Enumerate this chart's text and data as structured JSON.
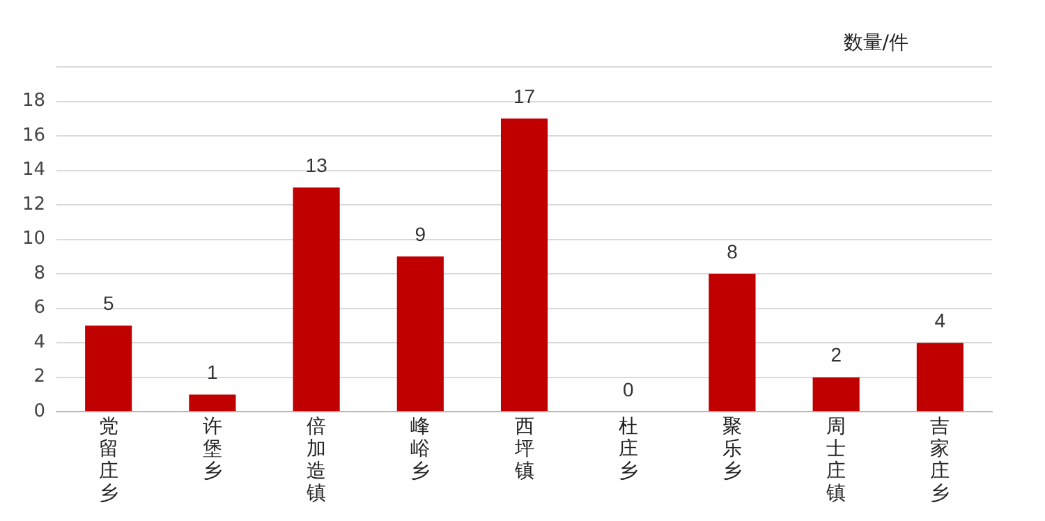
{
  "chart_data": {
    "type": "bar",
    "ylabel": "数量/件",
    "categories": [
      "党留庄乡",
      "许堡乡",
      "倍加造镇",
      "峰峪乡",
      "西坪镇",
      "杜庄乡",
      "聚乐乡",
      "周士庄镇",
      "吉家庄乡"
    ],
    "values": [
      5,
      1,
      13,
      9,
      17,
      0,
      8,
      2,
      4
    ],
    "color": "#c00000",
    "ylim": [
      0,
      20
    ],
    "yticks": [
      0,
      2,
      4,
      6,
      8,
      10,
      12,
      14,
      16,
      18,
      {
        "value": 20,
        "label": null
      }
    ],
    "grid": "y",
    "data_labels": true
  }
}
